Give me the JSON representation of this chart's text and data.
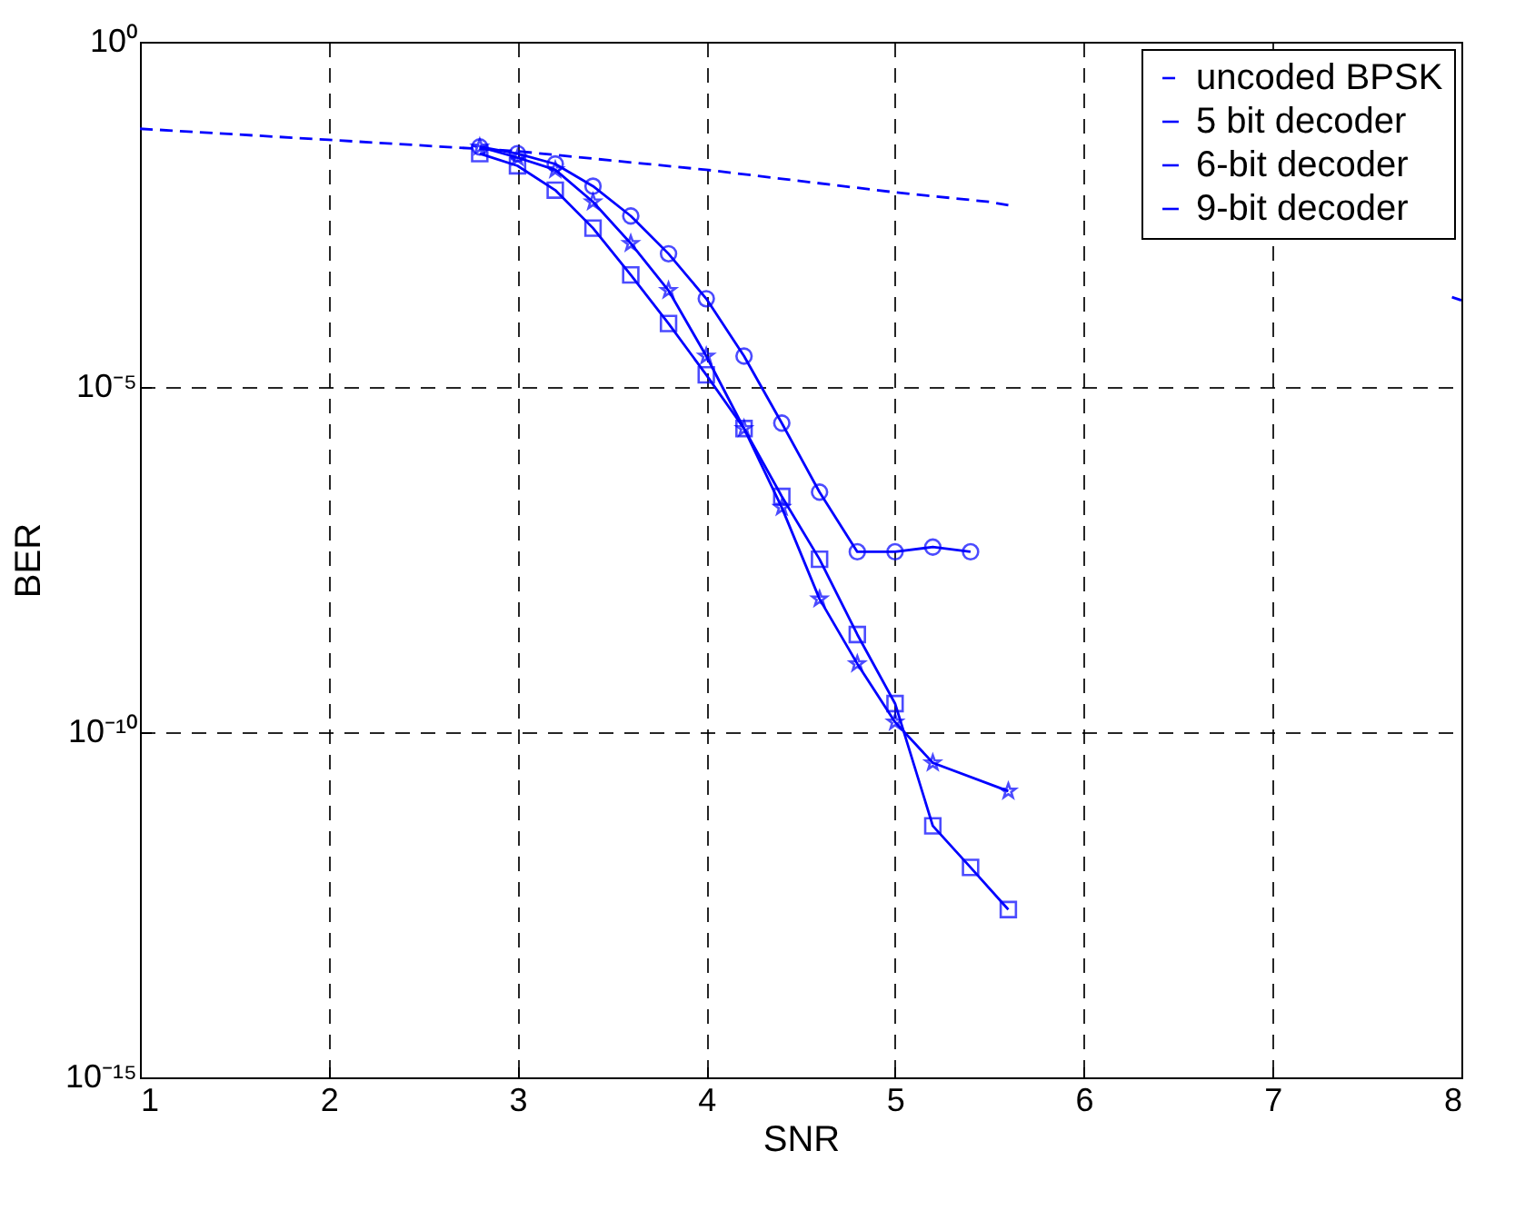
{
  "chart_data": {
    "type": "line",
    "xlabel": "SNR",
    "ylabel": "BER",
    "log": true,
    "grid": true,
    "legend": "top right",
    "xlim": [
      1,
      8
    ],
    "xticks": [
      1,
      2,
      3,
      4,
      5,
      6,
      7,
      8
    ],
    "ylim": [
      1e-15,
      1
    ],
    "yticks": [
      {
        "value": 1,
        "label": "10⁰"
      },
      {
        "value": 1e-05,
        "label": "10⁻⁵"
      },
      {
        "value": 1e-10,
        "label": "10⁻¹⁰"
      },
      {
        "value": 1e-15,
        "label": "10⁻¹⁵"
      }
    ],
    "series": [
      {
        "name": "uncoded BPSK",
        "color": "#0000ff",
        "line_style": "dashed",
        "marker": "none",
        "x": [
          1,
          2,
          3,
          4,
          5,
          5.5,
          5.6,
          6.8,
          7.95,
          8
        ],
        "values": [
          0.055,
          0.038,
          0.026,
          0.014,
          0.0066,
          0.0048,
          0.0043,
          null,
          0.0002,
          0.00018
        ]
      },
      {
        "name": "5 bit decoder",
        "color": "#0000ff",
        "line_style": "solid",
        "marker": "circle",
        "x": [
          2.8,
          3.0,
          3.2,
          3.4,
          3.6,
          3.8,
          4.0,
          4.2,
          4.4,
          4.6,
          4.8,
          5.0,
          5.2,
          5.4
        ],
        "values": [
          0.03,
          0.024,
          0.017,
          0.0081,
          0.003,
          0.00085,
          0.00019,
          2.8e-05,
          3e-06,
          3e-07,
          4.1e-08,
          4.1e-08,
          4.8e-08,
          4.1e-08
        ]
      },
      {
        "name": "6-bit decoder",
        "color": "#0000ff",
        "line_style": "solid",
        "marker": "star",
        "x": [
          2.8,
          3.0,
          3.2,
          3.4,
          3.6,
          3.8,
          4.0,
          4.2,
          4.4,
          4.6,
          4.8,
          5.0,
          5.2,
          5.6
        ],
        "values": [
          0.03,
          0.021,
          0.014,
          0.0048,
          0.0012,
          0.00025,
          2.8e-05,
          2.5e-06,
          1.8e-07,
          8.5e-09,
          9.8e-10,
          1.4e-10,
          3.6e-11,
          1.4e-11
        ]
      },
      {
        "name": "9-bit decoder",
        "color": "#0000ff",
        "line_style": "solid",
        "marker": "square",
        "x": [
          2.8,
          3.0,
          3.2,
          3.4,
          3.6,
          3.8,
          4.0,
          4.2,
          4.4,
          4.6,
          4.8,
          5.0,
          5.2,
          5.4,
          5.6
        ],
        "values": [
          0.024,
          0.016,
          0.0071,
          0.002,
          0.00042,
          8.3e-05,
          1.5e-05,
          2.5e-06,
          2.6e-07,
          3.2e-08,
          2.6e-09,
          2.6e-10,
          4.4e-12,
          1.1e-12,
          2.7e-13
        ]
      }
    ]
  }
}
